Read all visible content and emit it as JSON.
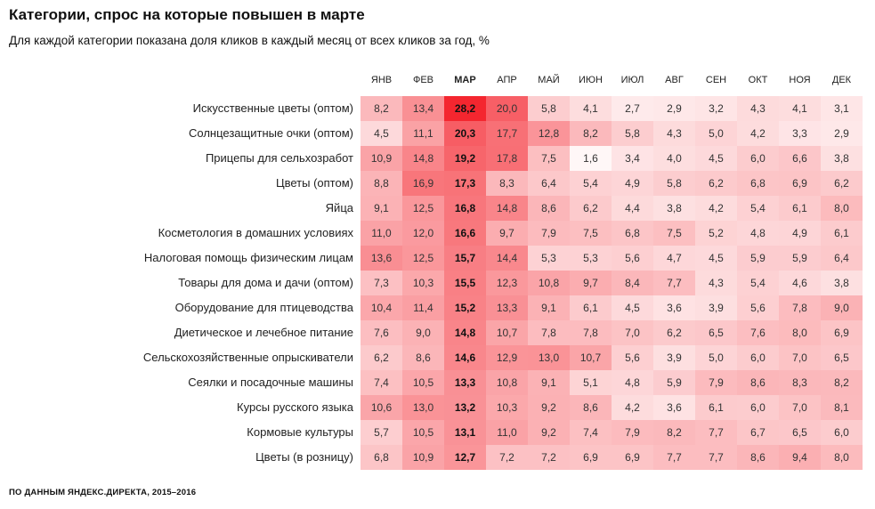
{
  "title": "Категории, спрос на которые повышен в марте",
  "subtitle": "Для каждой категории показана доля кликов в каждый месяц от всех кликов за год, %",
  "footer": "ПО ДАННЫМ ЯНДЕКС.ДИРЕКТА, 2015–2016",
  "colors": {
    "low": "#ffffff",
    "high": "#f4262f"
  },
  "chart_data": {
    "type": "heatmap",
    "title": "Категории, спрос на которые повышен в марте",
    "highlight_column": "МАР",
    "columns": [
      "ЯНВ",
      "ФЕВ",
      "МАР",
      "АПР",
      "МАЙ",
      "ИЮН",
      "ИЮЛ",
      "АВГ",
      "СЕН",
      "ОКТ",
      "НОЯ",
      "ДЕК"
    ],
    "rows": [
      {
        "label": "Искусственные цветы (оптом)",
        "values": [
          "8,2",
          "13,4",
          "28,2",
          "20,0",
          "5,8",
          "4,1",
          "2,7",
          "2,9",
          "3,2",
          "4,3",
          "4,1",
          "3,1"
        ]
      },
      {
        "label": "Солнцезащитные очки (оптом)",
        "values": [
          "4,5",
          "11,1",
          "20,3",
          "17,7",
          "12,8",
          "8,2",
          "5,8",
          "4,3",
          "5,0",
          "4,2",
          "3,3",
          "2,9"
        ]
      },
      {
        "label": "Прицепы для сельхозработ",
        "values": [
          "10,9",
          "14,8",
          "19,2",
          "17,8",
          "7,5",
          "1,6",
          "3,4",
          "4,0",
          "4,5",
          "6,0",
          "6,6",
          "3,8"
        ]
      },
      {
        "label": "Цветы (оптом)",
        "values": [
          "8,8",
          "16,9",
          "17,3",
          "8,3",
          "6,4",
          "5,4",
          "4,9",
          "5,8",
          "6,2",
          "6,8",
          "6,9",
          "6,2"
        ]
      },
      {
        "label": "Яйца",
        "values": [
          "9,1",
          "12,5",
          "16,8",
          "14,8",
          "8,6",
          "6,2",
          "4,4",
          "3,8",
          "4,2",
          "5,4",
          "6,1",
          "8,0"
        ]
      },
      {
        "label": "Косметология в домашних условиях",
        "values": [
          "11,0",
          "12,0",
          "16,6",
          "9,7",
          "7,9",
          "7,5",
          "6,8",
          "7,5",
          "5,2",
          "4,8",
          "4,9",
          "6,1"
        ]
      },
      {
        "label": "Налоговая помощь физическим лицам",
        "values": [
          "13,6",
          "12,5",
          "15,7",
          "14,4",
          "5,3",
          "5,3",
          "5,6",
          "4,7",
          "4,5",
          "5,9",
          "5,9",
          "6,4"
        ]
      },
      {
        "label": "Товары для дома и дачи (оптом)",
        "values": [
          "7,3",
          "10,3",
          "15,5",
          "12,3",
          "10,8",
          "9,7",
          "8,4",
          "7,7",
          "4,3",
          "5,4",
          "4,6",
          "3,8"
        ]
      },
      {
        "label": "Оборудование для птицеводства",
        "values": [
          "10,4",
          "11,4",
          "15,2",
          "13,3",
          "9,1",
          "6,1",
          "4,5",
          "3,6",
          "3,9",
          "5,6",
          "7,8",
          "9,0"
        ]
      },
      {
        "label": "Диетическое и лечебное питание",
        "values": [
          "7,6",
          "9,0",
          "14,8",
          "10,7",
          "7,8",
          "7,8",
          "7,0",
          "6,2",
          "6,5",
          "7,6",
          "8,0",
          "6,9"
        ]
      },
      {
        "label": "Сельскохозяйственные опрыскиватели",
        "values": [
          "6,2",
          "8,6",
          "14,6",
          "12,9",
          "13,0",
          "10,7",
          "5,6",
          "3,9",
          "5,0",
          "6,0",
          "7,0",
          "6,5"
        ]
      },
      {
        "label": "Сеялки и посадочные машины",
        "values": [
          "7,4",
          "10,5",
          "13,3",
          "10,8",
          "9,1",
          "5,1",
          "4,8",
          "5,9",
          "7,9",
          "8,6",
          "8,3",
          "8,2"
        ]
      },
      {
        "label": "Курсы русского языка",
        "values": [
          "10,6",
          "13,0",
          "13,2",
          "10,3",
          "9,2",
          "8,6",
          "4,2",
          "3,6",
          "6,1",
          "6,0",
          "7,0",
          "8,1"
        ]
      },
      {
        "label": "Кормовые культуры",
        "values": [
          "5,7",
          "10,5",
          "13,1",
          "11,0",
          "9,2",
          "7,4",
          "7,9",
          "8,2",
          "7,7",
          "6,7",
          "6,5",
          "6,0"
        ]
      },
      {
        "label": "Цветы (в розницу)",
        "values": [
          "6,8",
          "10,9",
          "12,7",
          "7,2",
          "7,2",
          "6,9",
          "6,9",
          "7,7",
          "7,7",
          "8,6",
          "9,4",
          "8,0"
        ]
      }
    ]
  }
}
